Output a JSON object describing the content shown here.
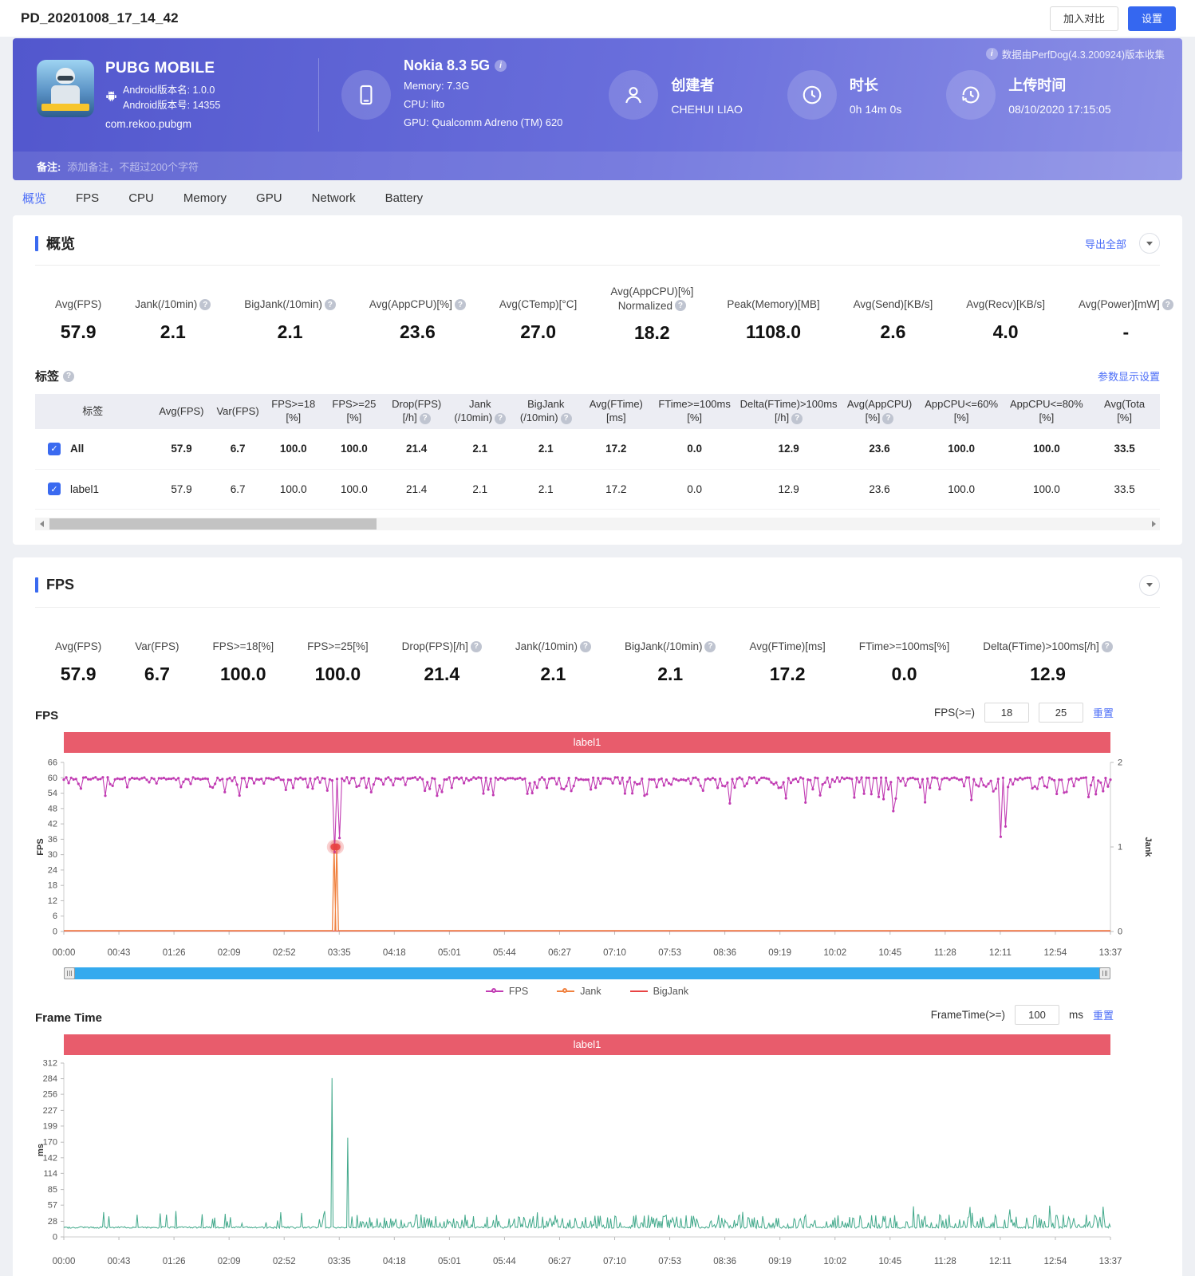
{
  "page": {
    "title": "PD_20201008_17_14_42",
    "compare_button": "加入对比",
    "settings_button": "设置"
  },
  "banner": {
    "app": {
      "name": "PUBG MOBILE",
      "version_name": "Android版本名: 1.0.0",
      "version_code": "Android版本号: 14355",
      "package": "com.rekoo.pubgm"
    },
    "device": {
      "name": "Nokia 8.3 5G",
      "memory": "Memory: 7.3G",
      "cpu": "CPU: lito",
      "gpu": "GPU: Qualcomm Adreno (TM) 620"
    },
    "creator": {
      "label": "创建者",
      "value": "CHEHUI LIAO"
    },
    "duration": {
      "label": "时长",
      "value": "0h 14m 0s"
    },
    "upload": {
      "label": "上传时间",
      "value": "08/10/2020 17:15:05"
    },
    "collector_note": "数据由PerfDog(4.3.200924)版本收集",
    "remark_label": "备注:",
    "remark_placeholder": "添加备注，不超过200个字符"
  },
  "tabs": [
    {
      "label": "概览",
      "active": true
    },
    {
      "label": "FPS"
    },
    {
      "label": "CPU"
    },
    {
      "label": "Memory"
    },
    {
      "label": "GPU"
    },
    {
      "label": "Network"
    },
    {
      "label": "Battery"
    }
  ],
  "overview": {
    "title": "概览",
    "export_all": "导出全部",
    "stats": [
      {
        "label": "Avg(FPS)",
        "value": "57.9"
      },
      {
        "label": "Jank(/10min)",
        "value": "2.1",
        "help": true
      },
      {
        "label": "BigJank(/10min)",
        "value": "2.1",
        "help": true
      },
      {
        "label": "Avg(AppCPU)[%]",
        "value": "23.6",
        "help": true
      },
      {
        "label": "Avg(CTemp)[°C]",
        "value": "27.0"
      },
      {
        "label": "Avg(AppCPU)[%]\nNormalized",
        "value": "18.2",
        "help": true
      },
      {
        "label": "Peak(Memory)[MB]",
        "value": "1108.0"
      },
      {
        "label": "Avg(Send)[KB/s]",
        "value": "2.6"
      },
      {
        "label": "Avg(Recv)[KB/s]",
        "value": "4.0"
      },
      {
        "label": "Avg(Power)[mW]",
        "value": "-",
        "help": true
      }
    ],
    "labels_title": "标签",
    "params_link": "参数显示设置",
    "table": {
      "columns": [
        {
          "l1": "标签"
        },
        {
          "l1": "Avg(FPS)"
        },
        {
          "l1": "Var(FPS)"
        },
        {
          "l1": "FPS>=18",
          "l2": "[%]"
        },
        {
          "l1": "FPS>=25",
          "l2": "[%]"
        },
        {
          "l1": "Drop(FPS)",
          "l2": "[/h]",
          "help": true
        },
        {
          "l1": "Jank",
          "l2": "(/10min)",
          "help": true
        },
        {
          "l1": "BigJank",
          "l2": "(/10min)",
          "help": true
        },
        {
          "l1": "Avg(FTime)",
          "l2": "[ms]"
        },
        {
          "l1": "FTime>=100ms",
          "l2": "[%]"
        },
        {
          "l1": "Delta(FTime)>100ms",
          "l2": "[/h]",
          "help": true
        },
        {
          "l1": "Avg(AppCPU)",
          "l2": "[%]",
          "help": true
        },
        {
          "l1": "AppCPU<=60%",
          "l2": "[%]"
        },
        {
          "l1": "AppCPU<=80%",
          "l2": "[%]"
        },
        {
          "l1": "Avg(Tota",
          "l2": "[%]"
        }
      ],
      "rows": [
        {
          "name": "All",
          "checked": true,
          "bold": true,
          "values": [
            "57.9",
            "6.7",
            "100.0",
            "100.0",
            "21.4",
            "2.1",
            "2.1",
            "17.2",
            "0.0",
            "12.9",
            "23.6",
            "100.0",
            "100.0",
            "33.5"
          ]
        },
        {
          "name": "label1",
          "checked": true,
          "bold": false,
          "values": [
            "57.9",
            "6.7",
            "100.0",
            "100.0",
            "21.4",
            "2.1",
            "2.1",
            "17.2",
            "0.0",
            "12.9",
            "23.6",
            "100.0",
            "100.0",
            "33.5"
          ]
        }
      ]
    }
  },
  "fps_section": {
    "title": "FPS",
    "stats": [
      {
        "label": "Avg(FPS)",
        "value": "57.9"
      },
      {
        "label": "Var(FPS)",
        "value": "6.7"
      },
      {
        "label": "FPS>=18[%]",
        "value": "100.0"
      },
      {
        "label": "FPS>=25[%]",
        "value": "100.0"
      },
      {
        "label": "Drop(FPS)[/h]",
        "value": "21.4",
        "help": true
      },
      {
        "label": "Jank(/10min)",
        "value": "2.1",
        "help": true
      },
      {
        "label": "BigJank(/10min)",
        "value": "2.1",
        "help": true
      },
      {
        "label": "Avg(FTime)[ms]",
        "value": "17.2"
      },
      {
        "label": "FTime>=100ms[%]",
        "value": "0.0"
      },
      {
        "label": "Delta(FTime)>100ms[/h]",
        "value": "12.9",
        "help": true
      }
    ],
    "fps_chart_title": "FPS",
    "fps_filter": {
      "label": "FPS(>=)",
      "min": "18",
      "max": "25",
      "reset": "重置"
    },
    "frametime_chart_title": "Frame Time",
    "ft_filter": {
      "label": "FrameTime(>=)",
      "value": "100",
      "unit": "ms",
      "reset": "重置"
    }
  },
  "chart_data": [
    {
      "type": "line",
      "name": "fps-over-time",
      "band_label": "label1",
      "x_ticks": [
        "00:00",
        "00:43",
        "01:26",
        "02:09",
        "02:52",
        "03:35",
        "04:18",
        "05:01",
        "05:44",
        "06:27",
        "07:10",
        "07:53",
        "08:36",
        "09:19",
        "10:02",
        "10:45",
        "11:28",
        "12:11",
        "12:54",
        "13:37"
      ],
      "x_total_seconds": 817,
      "y_left": {
        "label": "FPS",
        "min": 0,
        "max": 66,
        "ticks": [
          0,
          6,
          12,
          18,
          24,
          30,
          36,
          42,
          48,
          54,
          60,
          66
        ]
      },
      "y_right": {
        "label": "Jank",
        "min": 0,
        "max": 2,
        "ticks": [
          0,
          1,
          2
        ]
      },
      "legend": [
        {
          "name": "FPS",
          "color": "#c13cb3"
        },
        {
          "name": "Jank",
          "color": "#f0813f"
        },
        {
          "name": "BigJank",
          "color": "#e84343"
        }
      ],
      "series": [
        {
          "name": "FPS",
          "color": "#c13cb3",
          "baseline": 60,
          "typical_range": [
            54,
            60
          ],
          "notable_dips": [
            {
              "t": "03:26",
              "fps": 55
            },
            {
              "t": "03:31",
              "fps": 31
            },
            {
              "t": "03:36",
              "fps": 36.5
            },
            {
              "t": "06:06",
              "fps": 54
            },
            {
              "t": "08:40",
              "fps": 50
            },
            {
              "t": "09:23",
              "fps": 52
            },
            {
              "t": "10:47",
              "fps": 47
            },
            {
              "t": "12:11",
              "fps": 37
            },
            {
              "t": "12:16",
              "fps": 41
            },
            {
              "t": "13:20",
              "fps": 52.5
            }
          ]
        },
        {
          "name": "Jank",
          "color": "#f0813f",
          "baseline": 0,
          "spikes": [
            {
              "t": "03:31",
              "jank": 1
            },
            {
              "t": "03:33",
              "jank": 1
            }
          ]
        },
        {
          "name": "BigJank",
          "color": "#e84343",
          "baseline": 0,
          "events": [
            {
              "t": "03:31"
            },
            {
              "t": "03:33"
            }
          ]
        }
      ]
    },
    {
      "type": "line",
      "name": "frame-time",
      "band_label": "label1",
      "color": "#42a98b",
      "ylabel": "ms",
      "x_ticks": [
        "00:00",
        "00:43",
        "01:26",
        "02:09",
        "02:52",
        "03:35",
        "04:18",
        "05:01",
        "05:44",
        "06:27",
        "07:10",
        "07:53",
        "08:36",
        "09:19",
        "10:02",
        "10:45",
        "11:28",
        "12:11",
        "12:54",
        "13:37"
      ],
      "x_total_seconds": 817,
      "y_ticks": [
        0,
        28,
        57,
        85,
        114,
        142,
        170,
        199,
        227,
        256,
        284,
        312
      ],
      "baseline_ms": 17,
      "typical_spike_range_ms": [
        28,
        57
      ],
      "big_spikes": [
        {
          "t": "03:29",
          "ms": 285
        },
        {
          "t": "03:42",
          "ms": 178
        }
      ],
      "dense_region_start": "03:42"
    }
  ]
}
